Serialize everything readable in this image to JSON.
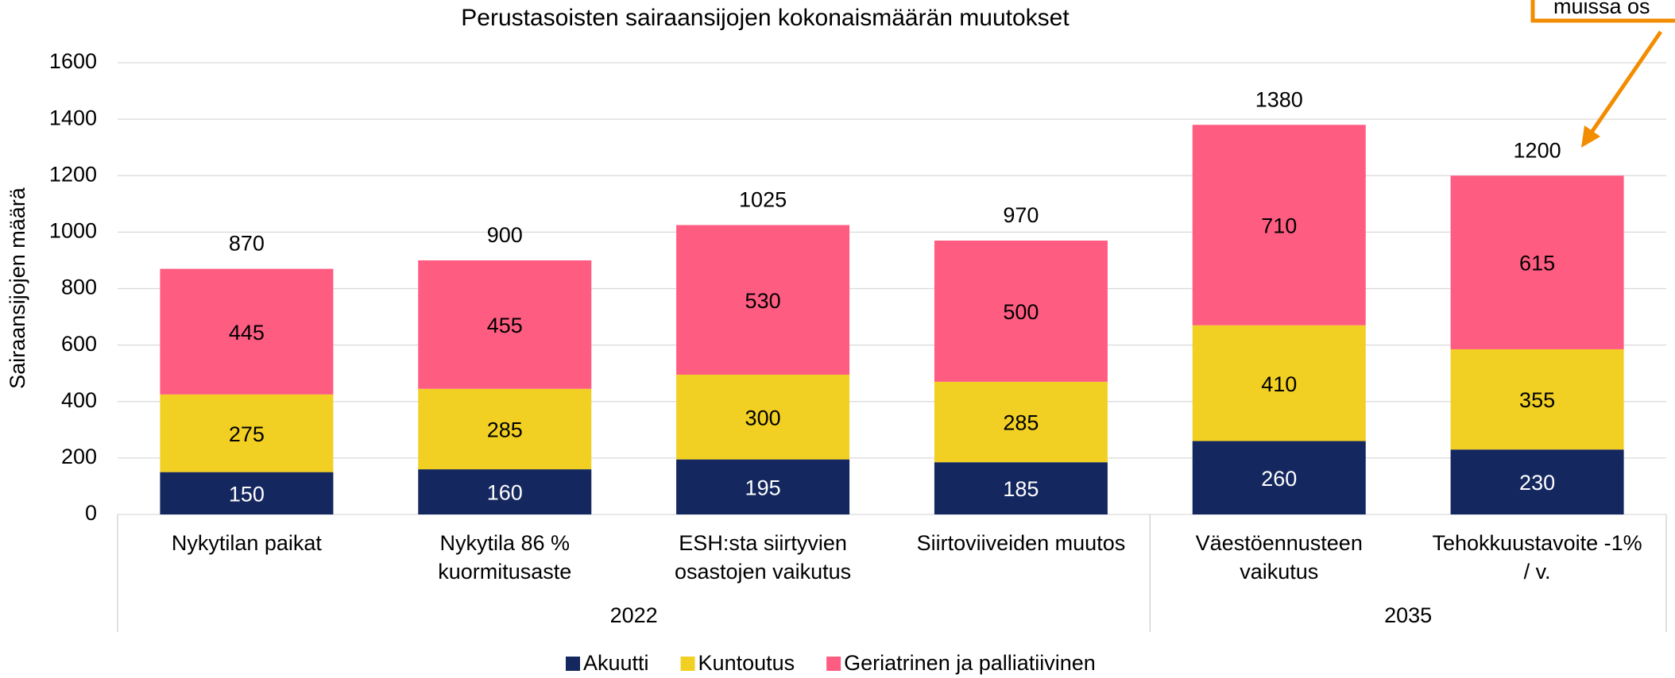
{
  "chart_data": {
    "type": "stacked_bar",
    "title": "Perustasoisten sairaansijojen kokonaismäärän muutokset",
    "y_axis_label": "Sairaansijojen määrä",
    "categories": [
      "Nykytilan paikat",
      "Nykytila 86 %\nkuormitusaste",
      "ESH:sta siirtyvien\nosastojen vaikutus",
      "Siirtoviiveiden muutos",
      "Väestöennusteen\nvaikutus",
      "Tehokkuustavoite -1%\n/ v."
    ],
    "group_labels": [
      "2022",
      "2022",
      "2022",
      "2022",
      "2035",
      "2035"
    ],
    "series": [
      {
        "name": "Akuutti",
        "color": "#14285f",
        "label_color": "#ffffff",
        "values": [
          150,
          160,
          195,
          185,
          260,
          230
        ]
      },
      {
        "name": "Kuntoutus",
        "color": "#f2d023",
        "label_color": "#000000",
        "values": [
          275,
          285,
          300,
          285,
          410,
          355
        ]
      },
      {
        "name": "Geriatrinen ja palliatiivinen",
        "color": "#ff5c82",
        "label_color": "#000000",
        "values": [
          445,
          455,
          530,
          500,
          710,
          615
        ]
      }
    ],
    "totals": [
      870,
      900,
      1025,
      970,
      1380,
      1200
    ],
    "annotation": "muissa os",
    "annotation_color": "#f28c00",
    "ylim": [
      0,
      1600
    ],
    "yticks": [
      0,
      200,
      400,
      600,
      800,
      1000,
      1200,
      1400,
      1600
    ],
    "grid": true,
    "legend": "bottom"
  }
}
